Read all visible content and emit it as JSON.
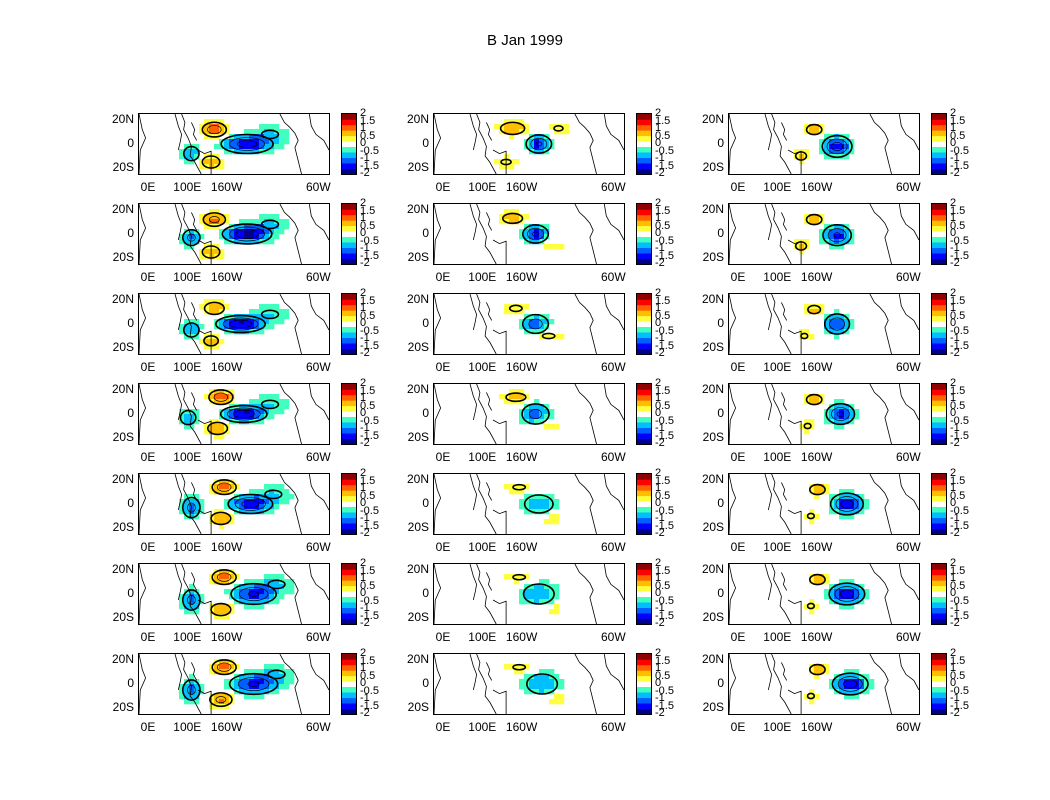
{
  "title": "B Jan 1999",
  "map_axes": {
    "y_ticks": [
      "20N",
      "0",
      "20S"
    ],
    "x_ticks": [
      "0E",
      "100E",
      "160W",
      "60W"
    ]
  },
  "colorbar": {
    "tick_labels": [
      "2",
      "1.5",
      "1",
      "0.5",
      "0",
      "-0.5",
      "-1",
      "-1.5",
      "-2"
    ],
    "colors": [
      "#00008f",
      "#0000ff",
      "#0060ff",
      "#00bfff",
      "#40ffbf",
      "#ffffff",
      "#ffff40",
      "#ffbf00",
      "#ff6000",
      "#ff0000",
      "#8f0000"
    ]
  },
  "grid": {
    "rows": 7,
    "cols": 3
  },
  "panels": [
    {
      "id": "r1c1",
      "fields": [
        {
          "lon": 205,
          "lat": 0,
          "v": -1.8,
          "sx": 35,
          "sy": 7
        },
        {
          "lon": 120,
          "lat": -8,
          "v": -1.0,
          "sx": 14,
          "sy": 7
        },
        {
          "lon": 155,
          "lat": 12,
          "v": 1.4,
          "sx": 18,
          "sy": 6
        },
        {
          "lon": 150,
          "lat": -15,
          "v": 1.0,
          "sx": 16,
          "sy": 6
        },
        {
          "lon": 240,
          "lat": 8,
          "v": -0.6,
          "sx": 30,
          "sy": 8
        }
      ]
    },
    {
      "id": "r1c2",
      "fields": [
        {
          "lon": 200,
          "lat": 0,
          "v": -1.6,
          "sx": 18,
          "sy": 7
        },
        {
          "lon": 160,
          "lat": 13,
          "v": 1.0,
          "sx": 22,
          "sy": 6
        },
        {
          "lon": 230,
          "lat": 13,
          "v": 0.6,
          "sx": 16,
          "sy": 5
        },
        {
          "lon": 150,
          "lat": -15,
          "v": 0.6,
          "sx": 18,
          "sy": 5
        }
      ]
    },
    {
      "id": "r1c3",
      "fields": [
        {
          "lon": 205,
          "lat": -2,
          "v": -1.8,
          "sx": 20,
          "sy": 8
        },
        {
          "lon": 170,
          "lat": 12,
          "v": 1.0,
          "sx": 14,
          "sy": 5
        },
        {
          "lon": 150,
          "lat": -10,
          "v": 0.8,
          "sx": 12,
          "sy": 5
        }
      ]
    },
    {
      "id": "r2c1",
      "fields": [
        {
          "lon": 205,
          "lat": 0,
          "v": -2.0,
          "sx": 32,
          "sy": 7
        },
        {
          "lon": 120,
          "lat": -3,
          "v": -1.2,
          "sx": 14,
          "sy": 7
        },
        {
          "lon": 155,
          "lat": 12,
          "v": 1.2,
          "sx": 18,
          "sy": 6
        },
        {
          "lon": 150,
          "lat": -15,
          "v": 1.0,
          "sx": 16,
          "sy": 6
        },
        {
          "lon": 240,
          "lat": 8,
          "v": -0.6,
          "sx": 30,
          "sy": 8
        }
      ]
    },
    {
      "id": "r2c2",
      "fields": [
        {
          "lon": 195,
          "lat": 0,
          "v": -1.6,
          "sx": 18,
          "sy": 7
        },
        {
          "lon": 160,
          "lat": 13,
          "v": 0.8,
          "sx": 22,
          "sy": 6
        },
        {
          "lon": 220,
          "lat": -10,
          "v": 0.5,
          "sx": 20,
          "sy": 5
        }
      ]
    },
    {
      "id": "r2c3",
      "fields": [
        {
          "lon": 205,
          "lat": -1,
          "v": -1.6,
          "sx": 20,
          "sy": 8
        },
        {
          "lon": 170,
          "lat": 12,
          "v": 1.0,
          "sx": 14,
          "sy": 5
        },
        {
          "lon": 150,
          "lat": -10,
          "v": 0.8,
          "sx": 12,
          "sy": 5
        }
      ]
    },
    {
      "id": "r3c1",
      "fields": [
        {
          "lon": 195,
          "lat": 0,
          "v": -2.0,
          "sx": 32,
          "sy": 6
        },
        {
          "lon": 120,
          "lat": -5,
          "v": -1.0,
          "sx": 14,
          "sy": 7
        },
        {
          "lon": 155,
          "lat": 13,
          "v": 1.0,
          "sx": 18,
          "sy": 6
        },
        {
          "lon": 150,
          "lat": -14,
          "v": 0.8,
          "sx": 16,
          "sy": 6
        },
        {
          "lon": 240,
          "lat": 8,
          "v": -0.6,
          "sx": 30,
          "sy": 8
        }
      ]
    },
    {
      "id": "r3c2",
      "fields": [
        {
          "lon": 195,
          "lat": 0,
          "v": -1.3,
          "sx": 20,
          "sy": 8
        },
        {
          "lon": 165,
          "lat": 13,
          "v": 0.6,
          "sx": 22,
          "sy": 6
        },
        {
          "lon": 215,
          "lat": -10,
          "v": 0.6,
          "sx": 22,
          "sy": 5
        }
      ]
    },
    {
      "id": "r3c3",
      "fields": [
        {
          "lon": 205,
          "lat": 0,
          "v": -1.5,
          "sx": 18,
          "sy": 8
        },
        {
          "lon": 170,
          "lat": 12,
          "v": 0.8,
          "sx": 14,
          "sy": 5
        },
        {
          "lon": 155,
          "lat": -10,
          "v": 0.6,
          "sx": 12,
          "sy": 5
        }
      ]
    },
    {
      "id": "r4c1",
      "fields": [
        {
          "lon": 200,
          "lat": 0,
          "v": -2.0,
          "sx": 30,
          "sy": 6
        },
        {
          "lon": 115,
          "lat": -3,
          "v": -1.0,
          "sx": 14,
          "sy": 7
        },
        {
          "lon": 165,
          "lat": 14,
          "v": 1.4,
          "sx": 18,
          "sy": 6
        },
        {
          "lon": 160,
          "lat": -12,
          "v": 1.0,
          "sx": 18,
          "sy": 6
        },
        {
          "lon": 240,
          "lat": 8,
          "v": -0.6,
          "sx": 30,
          "sy": 8
        }
      ]
    },
    {
      "id": "r4c2",
      "fields": [
        {
          "lon": 195,
          "lat": 0,
          "v": -1.2,
          "sx": 22,
          "sy": 9
        },
        {
          "lon": 165,
          "lat": 14,
          "v": 0.8,
          "sx": 22,
          "sy": 5
        },
        {
          "lon": 215,
          "lat": -10,
          "v": 0.5,
          "sx": 22,
          "sy": 5
        }
      ]
    },
    {
      "id": "r4c3",
      "fields": [
        {
          "lon": 210,
          "lat": 0,
          "v": -1.6,
          "sx": 20,
          "sy": 8
        },
        {
          "lon": 170,
          "lat": 12,
          "v": 1.0,
          "sx": 14,
          "sy": 5
        },
        {
          "lon": 160,
          "lat": -10,
          "v": 0.6,
          "sx": 12,
          "sy": 5
        }
      ]
    },
    {
      "id": "r5c1",
      "fields": [
        {
          "lon": 210,
          "lat": 0,
          "v": -1.8,
          "sx": 30,
          "sy": 7
        },
        {
          "lon": 120,
          "lat": -3,
          "v": -1.2,
          "sx": 14,
          "sy": 9
        },
        {
          "lon": 170,
          "lat": 14,
          "v": 1.4,
          "sx": 18,
          "sy": 6
        },
        {
          "lon": 165,
          "lat": -12,
          "v": 1.0,
          "sx": 18,
          "sy": 6
        },
        {
          "lon": 245,
          "lat": 8,
          "v": -0.6,
          "sx": 30,
          "sy": 8
        }
      ]
    },
    {
      "id": "r5c2",
      "fields": [
        {
          "lon": 200,
          "lat": 0,
          "v": -1.0,
          "sx": 26,
          "sy": 9
        },
        {
          "lon": 170,
          "lat": 14,
          "v": 0.6,
          "sx": 22,
          "sy": 5
        },
        {
          "lon": 220,
          "lat": -12,
          "v": 0.5,
          "sx": 22,
          "sy": 5
        }
      ]
    },
    {
      "id": "r5c3",
      "fields": [
        {
          "lon": 220,
          "lat": 0,
          "v": -1.8,
          "sx": 22,
          "sy": 8
        },
        {
          "lon": 175,
          "lat": 12,
          "v": 1.0,
          "sx": 14,
          "sy": 5
        },
        {
          "lon": 165,
          "lat": -10,
          "v": 0.6,
          "sx": 12,
          "sy": 5
        }
      ]
    },
    {
      "id": "r6c1",
      "fields": [
        {
          "lon": 215,
          "lat": 0,
          "v": -1.6,
          "sx": 32,
          "sy": 8
        },
        {
          "lon": 120,
          "lat": -5,
          "v": -1.2,
          "sx": 14,
          "sy": 9
        },
        {
          "lon": 170,
          "lat": 14,
          "v": 1.4,
          "sx": 18,
          "sy": 6
        },
        {
          "lon": 165,
          "lat": -13,
          "v": 1.0,
          "sx": 18,
          "sy": 6
        },
        {
          "lon": 250,
          "lat": 8,
          "v": -0.6,
          "sx": 30,
          "sy": 8
        }
      ]
    },
    {
      "id": "r6c2",
      "fields": [
        {
          "lon": 200,
          "lat": 0,
          "v": -1.0,
          "sx": 28,
          "sy": 10
        },
        {
          "lon": 170,
          "lat": 14,
          "v": 0.6,
          "sx": 22,
          "sy": 5
        },
        {
          "lon": 220,
          "lat": -12,
          "v": 0.5,
          "sx": 22,
          "sy": 5
        }
      ]
    },
    {
      "id": "r6c3",
      "fields": [
        {
          "lon": 220,
          "lat": 0,
          "v": -1.8,
          "sx": 24,
          "sy": 8
        },
        {
          "lon": 175,
          "lat": 12,
          "v": 1.0,
          "sx": 14,
          "sy": 5
        },
        {
          "lon": 165,
          "lat": -10,
          "v": 0.6,
          "sx": 12,
          "sy": 5
        }
      ]
    },
    {
      "id": "r7c1",
      "fields": [
        {
          "lon": 215,
          "lat": 0,
          "v": -1.6,
          "sx": 34,
          "sy": 8
        },
        {
          "lon": 120,
          "lat": -5,
          "v": -1.2,
          "sx": 14,
          "sy": 9
        },
        {
          "lon": 170,
          "lat": 14,
          "v": 1.4,
          "sx": 18,
          "sy": 6
        },
        {
          "lon": 165,
          "lat": -13,
          "v": 1.2,
          "sx": 18,
          "sy": 6
        },
        {
          "lon": 250,
          "lat": 8,
          "v": -0.6,
          "sx": 30,
          "sy": 8
        }
      ]
    },
    {
      "id": "r7c2",
      "fields": [
        {
          "lon": 205,
          "lat": 0,
          "v": -1.0,
          "sx": 28,
          "sy": 10
        },
        {
          "lon": 170,
          "lat": 14,
          "v": 0.6,
          "sx": 22,
          "sy": 5
        },
        {
          "lon": 225,
          "lat": -12,
          "v": 0.5,
          "sx": 22,
          "sy": 5
        }
      ]
    },
    {
      "id": "r7c3",
      "fields": [
        {
          "lon": 225,
          "lat": 0,
          "v": -1.8,
          "sx": 24,
          "sy": 8
        },
        {
          "lon": 175,
          "lat": 12,
          "v": 1.0,
          "sx": 14,
          "sy": 5
        },
        {
          "lon": 165,
          "lat": -10,
          "v": 0.6,
          "sx": 12,
          "sy": 5
        }
      ]
    }
  ]
}
